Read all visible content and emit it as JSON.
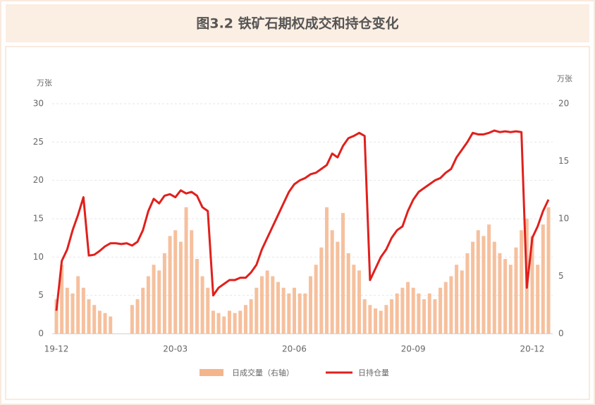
{
  "chart_data": {
    "type": "bar_line",
    "title": "图3.2 铁矿石期权成交和持仓变化",
    "y_label": "万张",
    "y2_label": "万张",
    "x": [
      "19-12",
      null,
      null,
      null,
      null,
      null,
      null,
      null,
      null,
      null,
      null,
      null,
      null,
      null,
      null,
      null,
      null,
      null,
      null,
      null,
      null,
      null,
      "20-03",
      null,
      null,
      null,
      null,
      null,
      null,
      null,
      null,
      null,
      null,
      null,
      null,
      null,
      null,
      null,
      null,
      null,
      null,
      null,
      null,
      null,
      "20-06",
      null,
      null,
      null,
      null,
      null,
      null,
      null,
      null,
      null,
      null,
      null,
      null,
      null,
      null,
      null,
      null,
      null,
      null,
      null,
      null,
      null,
      "20-09",
      null,
      null,
      null,
      null,
      null,
      null,
      null,
      null,
      null,
      null,
      null,
      null,
      null,
      null,
      null,
      null,
      null,
      null,
      null,
      null,
      null,
      "20-12",
      null,
      null,
      null
    ],
    "series": [
      {
        "name": "日成交量（右轴）",
        "type": "bar",
        "axis": "y2",
        "color": "#f5b58c",
        "values": [
          3,
          6,
          4,
          3.5,
          5,
          4,
          3,
          2.5,
          2,
          1.8,
          1.5,
          0,
          0,
          0,
          2.5,
          3,
          4,
          5,
          6,
          5.5,
          7,
          8.5,
          9,
          8,
          11,
          9,
          6.5,
          5,
          4,
          2,
          1.8,
          1.5,
          2,
          1.8,
          2,
          2.5,
          3,
          4,
          5,
          5.5,
          5,
          4.5,
          4,
          3.5,
          4,
          3.5,
          3.5,
          5,
          6,
          7.5,
          11,
          9,
          8,
          10.5,
          7,
          6,
          5.5,
          3,
          2.5,
          2.2,
          2,
          2.5,
          3,
          3.5,
          4,
          4.5,
          4,
          3.5,
          3,
          3.5,
          3,
          4,
          4.5,
          5,
          6,
          5.5,
          7,
          8,
          9,
          8.5,
          9.5,
          8,
          7,
          6.5,
          6,
          7.5,
          9,
          10,
          8.5,
          6,
          9.5,
          11
        ]
      },
      {
        "name": "日持仓量",
        "type": "line",
        "color": "#e0201c",
        "values": [
          3,
          9.5,
          11,
          13.5,
          15.5,
          17.8,
          10.2,
          10.3,
          10.8,
          11.4,
          11.8,
          11.8,
          11.7,
          11.8,
          11.5,
          12,
          13.5,
          16,
          17.6,
          17,
          18,
          18.2,
          17.8,
          18.7,
          18.3,
          18.5,
          18,
          16.5,
          16,
          5,
          6,
          6.5,
          7,
          7,
          7.3,
          7.3,
          8,
          9,
          11,
          12.5,
          14,
          15.5,
          17,
          18.5,
          19.5,
          20,
          20.3,
          20.8,
          21,
          21.5,
          22,
          23.5,
          23,
          24.5,
          25.5,
          25.8,
          26.2,
          25.8,
          7,
          8.5,
          10,
          11,
          12.5,
          13.5,
          14,
          16,
          17.5,
          18.5,
          19,
          19.5,
          20,
          20.3,
          21,
          21.5,
          23,
          24,
          25,
          26.2,
          26,
          26,
          26.2,
          26.5,
          26.3,
          26.4,
          26.3,
          26.4,
          26.3,
          6,
          12.5,
          14,
          16,
          17.5
        ]
      }
    ],
    "ylim": [
      0,
      30
    ],
    "yticks": [
      0,
      5,
      10,
      15,
      20,
      25,
      30
    ],
    "y2lim": [
      0,
      20
    ],
    "y2ticks": [
      0,
      5,
      10,
      15,
      20
    ],
    "grid": true,
    "legend": "bottom"
  }
}
